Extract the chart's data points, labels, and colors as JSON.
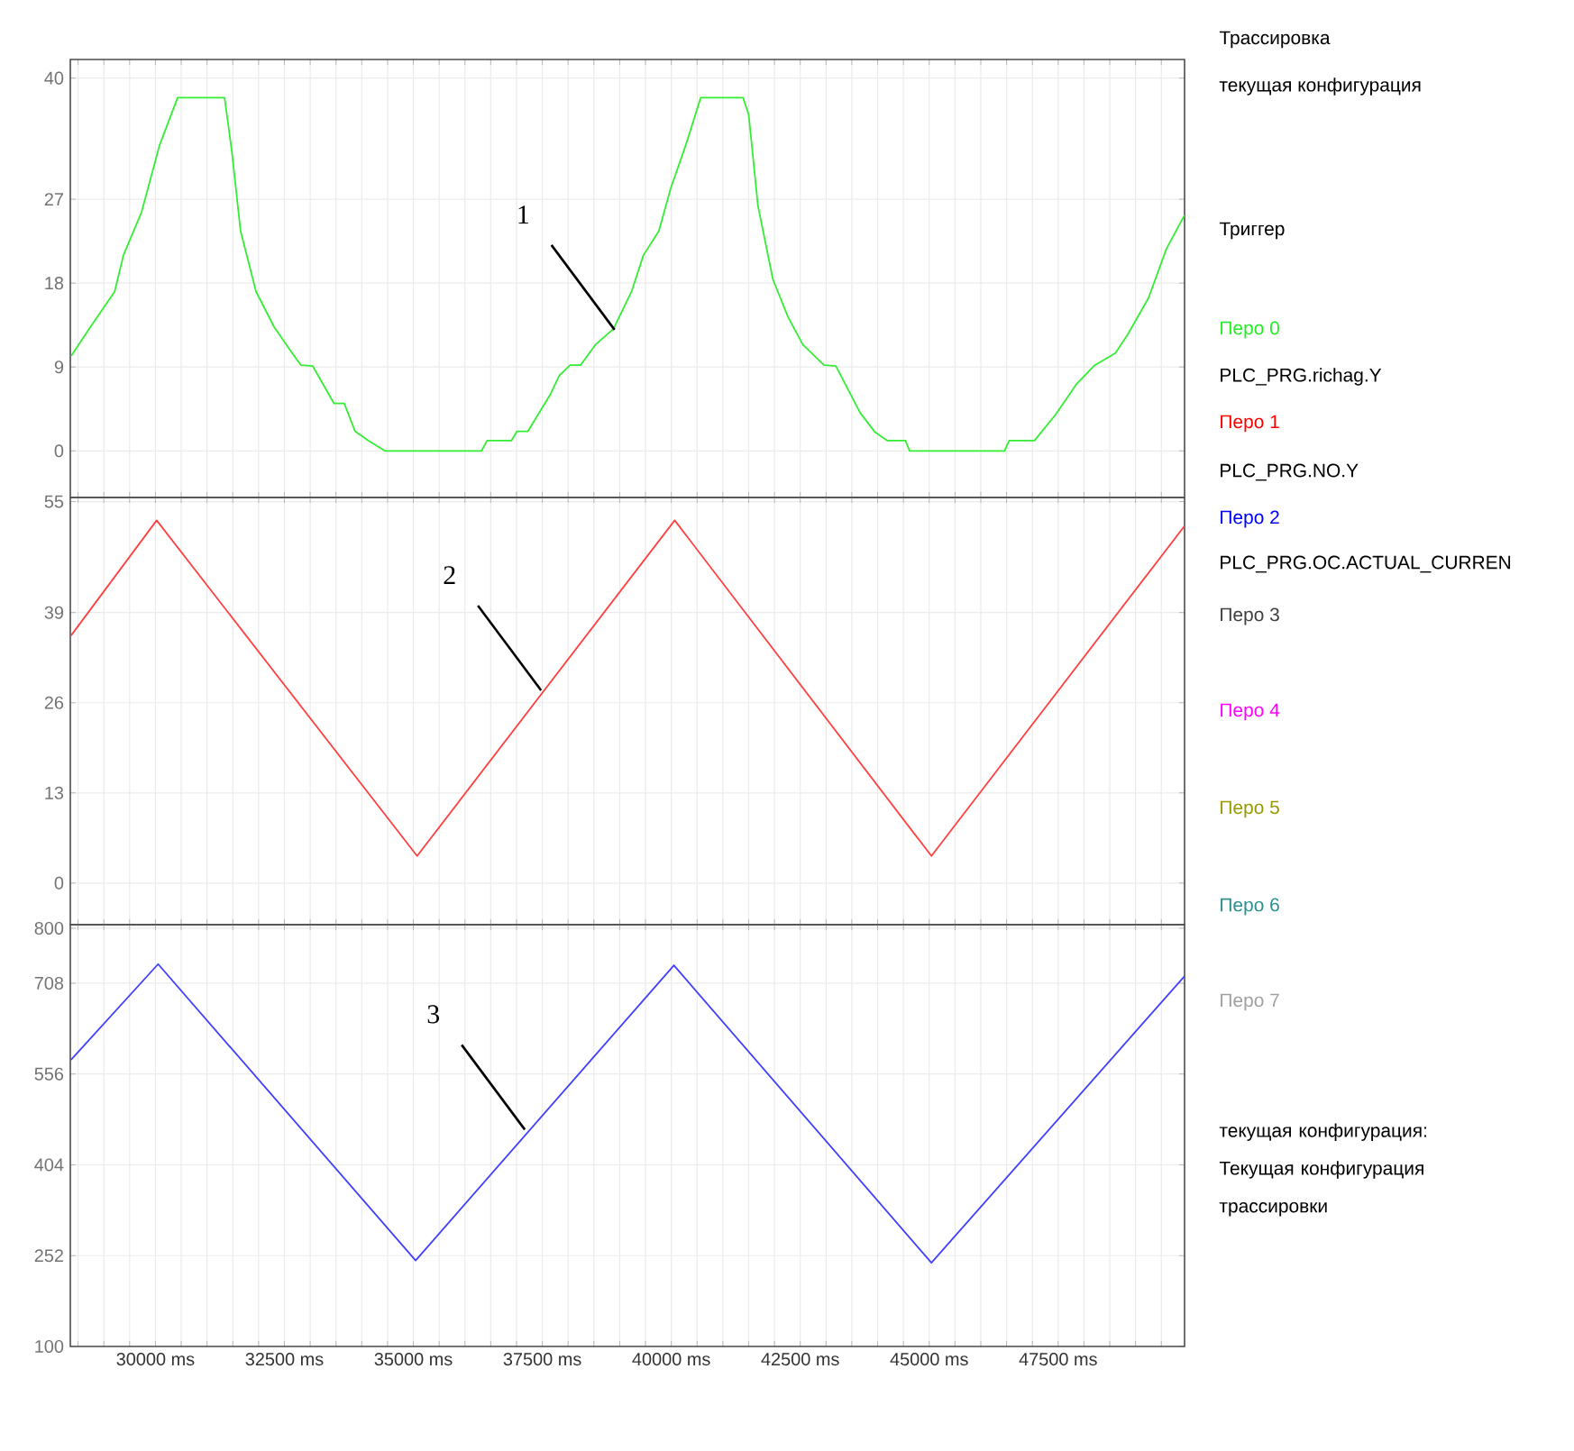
{
  "chart_data": [
    {
      "type": "line",
      "xlim": [
        28350,
        49950
      ],
      "ylim": [
        -5,
        42
      ],
      "yticks": [
        0,
        9,
        18,
        27,
        40
      ],
      "grid": true,
      "tick_labels": "y",
      "line_style": "solid",
      "xticks": [
        28500,
        29000,
        29500,
        30000,
        30500,
        31000,
        31500,
        32000,
        32500,
        33000,
        33500,
        34000,
        34500,
        35000,
        35500,
        36000,
        36500,
        37000,
        37500,
        38000,
        38500,
        39000,
        39500,
        40000,
        40500,
        41000,
        41500,
        42000,
        42500,
        43000,
        43500,
        44000,
        44500,
        45000,
        45500,
        46000,
        46500,
        47000,
        47500,
        48000,
        48500,
        49000,
        49500
      ],
      "annotations": [
        {
          "text": "1",
          "x": 38900,
          "y": 13
        }
      ],
      "series": [
        {
          "color": "#33ee33",
          "x": [
            28370,
            28740,
            29210,
            29380,
            29730,
            30080,
            30430,
            31340,
            31480,
            31650,
            31950,
            32300,
            32650,
            32820,
            33050,
            33460,
            33660,
            33870,
            34130,
            34450,
            36320,
            36430,
            36900,
            37010,
            37220,
            37660,
            37830,
            38040,
            38240,
            38530,
            38880,
            39230,
            39460,
            39760,
            39990,
            40280,
            40570,
            41390,
            41500,
            41680,
            41970,
            42260,
            42550,
            42960,
            43190,
            43660,
            43950,
            44190,
            44540,
            44620,
            46460,
            46550,
            47040,
            47450,
            47860,
            48210,
            48610,
            48850,
            49250,
            49600,
            49950
          ],
          "values": [
            10.2,
            13.3,
            17.1,
            21,
            25.6,
            32.8,
            37.9,
            37.9,
            32.2,
            23.6,
            17.1,
            13.3,
            10.5,
            9.2,
            9.1,
            5.1,
            5.1,
            2.1,
            1.1,
            0,
            0,
            1.1,
            1.1,
            2.1,
            2.1,
            6.1,
            8.1,
            9.2,
            9.2,
            11.4,
            13.1,
            17.1,
            21,
            23.6,
            28.2,
            32.8,
            37.9,
            37.9,
            36.1,
            26.3,
            18.4,
            14.4,
            11.4,
            9.2,
            9.1,
            4.1,
            2,
            1.1,
            1.1,
            0,
            0,
            1.1,
            1.1,
            3.9,
            7.2,
            9.2,
            10.5,
            12.5,
            16.4,
            21.7,
            25.3
          ]
        }
      ]
    },
    {
      "type": "line",
      "xlim": [
        28350,
        49950
      ],
      "ylim": [
        -6,
        55.6
      ],
      "yticks": [
        0,
        13,
        26,
        39,
        55
      ],
      "grid": true,
      "tick_labels": "y",
      "line_style": "solid",
      "xticks": [
        28500,
        29000,
        29500,
        30000,
        30500,
        31000,
        31500,
        32000,
        32500,
        33000,
        33500,
        34000,
        34500,
        35000,
        35500,
        36000,
        36500,
        37000,
        37500,
        38000,
        38500,
        39000,
        39500,
        40000,
        40500,
        41000,
        41500,
        42000,
        42500,
        43000,
        43500,
        44000,
        44500,
        45000,
        45500,
        46000,
        46500,
        47000,
        47500,
        48000,
        48500,
        49000,
        49500
      ],
      "annotations": [
        {
          "text": "2",
          "x": 37475,
          "y": 27.8
        }
      ],
      "series": [
        {
          "color": "#ff4040",
          "x": [
            28365,
            30024,
            35073,
            40066,
            45043,
            49950
          ],
          "values": [
            35.7,
            52.3,
            3.9,
            52.3,
            3.9,
            51.5
          ]
        }
      ]
    },
    {
      "type": "line",
      "xlim": [
        28350,
        49950
      ],
      "ylim": [
        100,
        806
      ],
      "yticks": [
        100,
        252,
        404,
        556,
        708,
        800
      ],
      "grid": true,
      "line_style": "solid",
      "xticks": [
        {
          "value": 28500,
          "label": null
        },
        {
          "value": 29000,
          "label": null
        },
        {
          "value": 29500,
          "label": null
        },
        {
          "value": 30000,
          "label": "30000 ms"
        },
        {
          "value": 30500,
          "label": null
        },
        {
          "value": 31000,
          "label": null
        },
        {
          "value": 31500,
          "label": null
        },
        {
          "value": 32000,
          "label": null
        },
        {
          "value": 32500,
          "label": "32500 ms"
        },
        {
          "value": 33000,
          "label": null
        },
        {
          "value": 33500,
          "label": null
        },
        {
          "value": 34000,
          "label": null
        },
        {
          "value": 34500,
          "label": null
        },
        {
          "value": 35000,
          "label": "35000 ms"
        },
        {
          "value": 35500,
          "label": null
        },
        {
          "value": 36000,
          "label": null
        },
        {
          "value": 36500,
          "label": null
        },
        {
          "value": 37000,
          "label": null
        },
        {
          "value": 37500,
          "label": "37500 ms"
        },
        {
          "value": 38000,
          "label": null
        },
        {
          "value": 38500,
          "label": null
        },
        {
          "value": 39000,
          "label": null
        },
        {
          "value": 39500,
          "label": null
        },
        {
          "value": 40000,
          "label": "40000 ms"
        },
        {
          "value": 40500,
          "label": null
        },
        {
          "value": 41000,
          "label": null
        },
        {
          "value": 41500,
          "label": null
        },
        {
          "value": 42000,
          "label": null
        },
        {
          "value": 42500,
          "label": "42500 ms"
        },
        {
          "value": 43000,
          "label": null
        },
        {
          "value": 43500,
          "label": null
        },
        {
          "value": 44000,
          "label": null
        },
        {
          "value": 44500,
          "label": null
        },
        {
          "value": 45000,
          "label": "45000 ms"
        },
        {
          "value": 45500,
          "label": null
        },
        {
          "value": 46000,
          "label": null
        },
        {
          "value": 46500,
          "label": null
        },
        {
          "value": 47000,
          "label": null
        },
        {
          "value": 47500,
          "label": "47500 ms"
        },
        {
          "value": 48000,
          "label": null
        },
        {
          "value": 48500,
          "label": null
        },
        {
          "value": 49000,
          "label": null
        },
        {
          "value": 49500,
          "label": null
        }
      ],
      "annotations": [
        {
          "text": "3",
          "x": 37160,
          "y": 463
        }
      ],
      "series": [
        {
          "color": "#4040ff",
          "x": [
            28365,
            30052,
            35044,
            40051,
            45043,
            49950
          ],
          "values": [
            580,
            740,
            244,
            738,
            240,
            720
          ]
        }
      ]
    },
    {
      "type": "other",
      "annotations": [
        "Трассировка",
        "текущая конфигурация",
        "Триггер",
        "Перо 0",
        "PLC_PRG.richag.Y",
        "Перо 1",
        "PLC_PRG.NO.Y",
        "Перо 2",
        "PLC_PRG.OC.ACTUAL_CURREN",
        "Перо 3",
        "Перо 4",
        "Перо 5",
        "Перо 6",
        "Перо 7",
        "текущая конфигурация: Текущая конфигурация трассировки"
      ],
      "colors": [
        "#000000",
        "#000000",
        "#000000",
        "#22ee22",
        "#000000",
        "#ff0000",
        "#000000",
        "#0000ff",
        "#000000",
        "#404040",
        "#ff00ff",
        "#999900",
        "#2a9090",
        "#a0a0a0",
        "#000000"
      ]
    }
  ]
}
